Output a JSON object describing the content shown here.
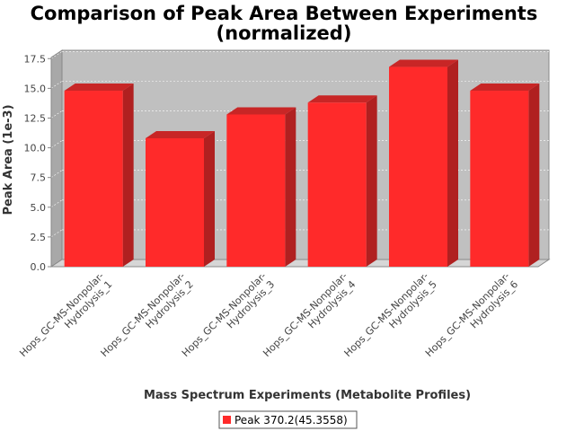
{
  "chart_data": {
    "type": "bar",
    "title": [
      "Comparison of Peak Area Between Experiments",
      "(normalized)"
    ],
    "xlabel": "Mass Spectrum Experiments (Metabolite Profiles)",
    "ylabel": "Peak Area (1e-3)",
    "categories": [
      [
        "Hops_GC-MS-Nonpolar-",
        "Hydrolysis_1"
      ],
      [
        "Hops_GC-MS-Nonpolar-",
        "Hydrolysis_2"
      ],
      [
        "Hops_GC-MS-Nonpolar-",
        "Hydrolysis_3"
      ],
      [
        "Hops_GC-MS-Nonpolar-",
        "Hydrolysis_4"
      ],
      [
        "Hops_GC-MS-Nonpolar-",
        "Hydrolysis_5"
      ],
      [
        "Hops_GC-MS-Nonpolar-",
        "Hydrolysis_6"
      ]
    ],
    "series": [
      {
        "name": "Peak 370.2(45.3558)",
        "values": [
          14.8,
          10.8,
          12.8,
          13.8,
          16.8,
          14.8
        ],
        "color": "#ff2a2a"
      }
    ],
    "ylim": [
      0,
      18.2
    ],
    "yticks": [
      "0.0",
      "2.5",
      "5.0",
      "7.5",
      "10.0",
      "12.5",
      "15.0",
      "17.5"
    ],
    "grid": true,
    "legend_position": "bottom",
    "style": "3d",
    "plot_background": "#c0c0c0"
  }
}
